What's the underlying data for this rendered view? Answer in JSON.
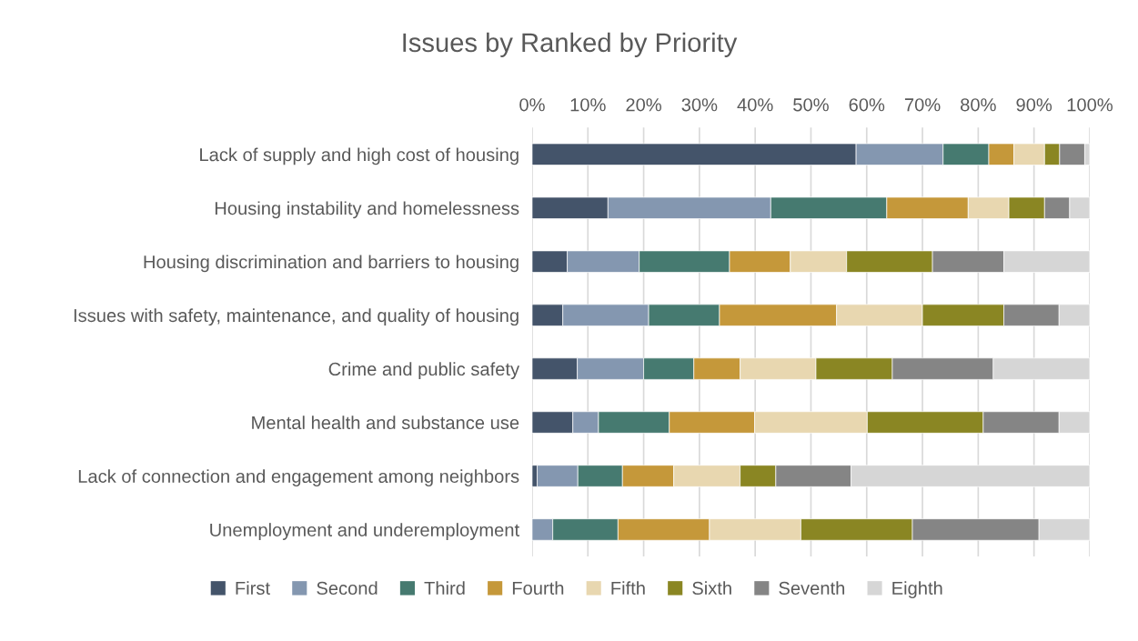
{
  "chart_data": {
    "type": "bar",
    "orientation": "horizontal",
    "stacked": true,
    "title": "Issues by Ranked by Priority",
    "categories": [
      "Lack of supply and high cost of housing",
      "Housing instability and homelessness",
      "Housing discrimination and barriers to housing",
      "Issues with safety, maintenance, and quality of housing",
      "Crime and public safety",
      "Mental health and substance use",
      "Lack of connection and engagement among neighbors",
      "Unemployment and underemployment"
    ],
    "series": [
      {
        "name": "First",
        "color": "#44546a",
        "values": [
          58.1,
          13.6,
          6.3,
          5.5,
          8.1,
          7.3,
          0.9,
          0
        ]
      },
      {
        "name": "Second",
        "color": "#8497b0",
        "values": [
          15.6,
          29.2,
          12.9,
          15.4,
          11.9,
          4.6,
          7.3,
          3.7
        ]
      },
      {
        "name": "Third",
        "color": "#467a70",
        "values": [
          8.2,
          20.8,
          16.2,
          12.7,
          9.0,
          12.7,
          8.0,
          11.7
        ]
      },
      {
        "name": "Fourth",
        "color": "#c5983a",
        "values": [
          4.5,
          14.6,
          10.9,
          21.0,
          8.3,
          15.3,
          9.2,
          16.4
        ]
      },
      {
        "name": "Fifth",
        "color": "#e8d7b0",
        "values": [
          5.5,
          7.3,
          10.1,
          15.4,
          13.6,
          20.2,
          11.9,
          16.4
        ]
      },
      {
        "name": "Sixth",
        "color": "#8a8623",
        "values": [
          2.7,
          6.4,
          15.4,
          14.6,
          13.7,
          20.8,
          6.4,
          20.0
        ]
      },
      {
        "name": "Seventh",
        "color": "#858585",
        "values": [
          4.5,
          4.5,
          12.8,
          9.9,
          18.1,
          13.6,
          13.5,
          22.7
        ]
      },
      {
        "name": "Eighth",
        "color": "#d6d6d6",
        "values": [
          0.9,
          3.6,
          15.4,
          5.5,
          17.3,
          5.5,
          42.8,
          9.1
        ]
      }
    ],
    "xlim": [
      0,
      100
    ],
    "xticks": [
      {
        "value": 0,
        "label": "0%"
      },
      {
        "value": 10,
        "label": "10%"
      },
      {
        "value": 20,
        "label": "20%"
      },
      {
        "value": 30,
        "label": "30%"
      },
      {
        "value": 40,
        "label": "40%"
      },
      {
        "value": 50,
        "label": "50%"
      },
      {
        "value": 60,
        "label": "60%"
      },
      {
        "value": 70,
        "label": "70%"
      },
      {
        "value": 80,
        "label": "80%"
      },
      {
        "value": 90,
        "label": "90%"
      },
      {
        "value": 100,
        "label": "100%"
      }
    ],
    "grid": "x",
    "legend": "bottom"
  }
}
